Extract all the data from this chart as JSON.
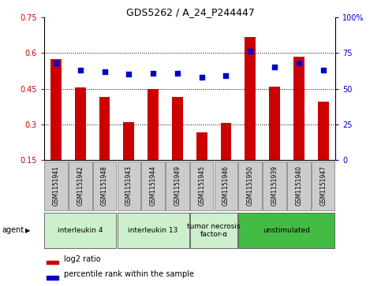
{
  "title": "GDS5262 / A_24_P244447",
  "samples": [
    "GSM1151941",
    "GSM1151942",
    "GSM1151948",
    "GSM1151943",
    "GSM1151944",
    "GSM1151949",
    "GSM1151945",
    "GSM1151946",
    "GSM1151950",
    "GSM1151939",
    "GSM1151940",
    "GSM1151947"
  ],
  "log2_ratio": [
    0.575,
    0.455,
    0.415,
    0.31,
    0.45,
    0.415,
    0.265,
    0.305,
    0.665,
    0.46,
    0.585,
    0.395
  ],
  "percentile_rank": [
    68,
    63,
    62,
    60,
    61,
    61,
    58,
    59,
    76,
    65,
    68,
    63
  ],
  "agent_groups": [
    {
      "label": "interleukin 4",
      "indices": [
        0,
        1,
        2
      ],
      "color": "#ccf0cc"
    },
    {
      "label": "interleukin 13",
      "indices": [
        3,
        4,
        5
      ],
      "color": "#ccf0cc"
    },
    {
      "label": "tumor necrosis\nfactor-α",
      "indices": [
        6,
        7
      ],
      "color": "#ccf0cc"
    },
    {
      "label": "unstimulated",
      "indices": [
        8,
        9,
        10,
        11
      ],
      "color": "#44bb44"
    }
  ],
  "ylim_left": [
    0.15,
    0.75
  ],
  "yticks_left": [
    0.15,
    0.3,
    0.45,
    0.6,
    0.75
  ],
  "ylim_right": [
    0,
    100
  ],
  "yticks_right": [
    0,
    25,
    50,
    75,
    100
  ],
  "bar_color": "#cc0000",
  "dot_color": "#0000cc",
  "bar_width": 0.45,
  "background_color": "#ffffff"
}
